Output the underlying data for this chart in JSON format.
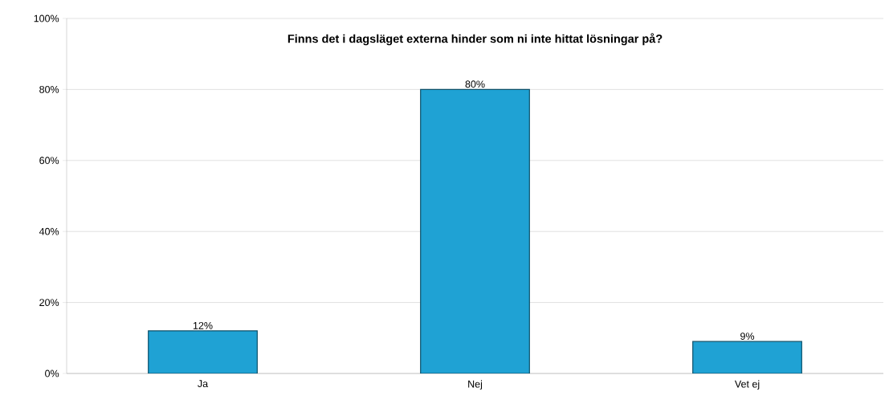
{
  "chart_data": {
    "type": "bar",
    "title": "Finns det i dagsläget externa hinder som ni inte hittat lösningar på?",
    "categories": [
      "Ja",
      "Nej",
      "Vet ej"
    ],
    "values": [
      12,
      80,
      9
    ],
    "value_labels": [
      "12%",
      "80%",
      "9%"
    ],
    "color": "#1fa2d4",
    "ylim": [
      0,
      100
    ],
    "yticks": [
      {
        "value": 0,
        "label": "0%"
      },
      {
        "value": 20,
        "label": "20%"
      },
      {
        "value": 40,
        "label": "40%"
      },
      {
        "value": 60,
        "label": "60%"
      },
      {
        "value": 80,
        "label": "80%"
      },
      {
        "value": 100,
        "label": "100%"
      }
    ],
    "grid": "y"
  }
}
